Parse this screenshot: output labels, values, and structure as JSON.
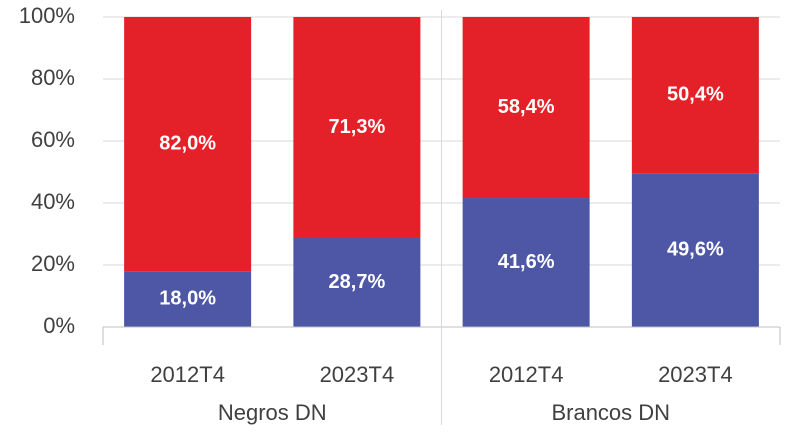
{
  "chart_data": {
    "type": "stacked_bar",
    "groups": [
      "Negros DN",
      "Brancos DN"
    ],
    "categories": [
      "2012T4",
      "2023T4",
      "2012T4",
      "2023T4"
    ],
    "series": [
      {
        "color": "#4e56a6",
        "values": [
          18.0,
          28.7,
          41.6,
          49.6
        ],
        "value_labels": [
          "18,0%",
          "28,7%",
          "41,6%",
          "49,6%"
        ]
      },
      {
        "color": "#e42128",
        "values": [
          82.0,
          71.3,
          58.4,
          50.4
        ],
        "value_labels": [
          "82,0%",
          "71,3%",
          "58,4%",
          "50,4%"
        ]
      }
    ],
    "ylim": [
      0,
      100
    ],
    "yticks": [
      {
        "value": 0,
        "label": "0%"
      },
      {
        "value": 20,
        "label": "20%"
      },
      {
        "value": 40,
        "label": "40%"
      },
      {
        "value": 60,
        "label": "60%"
      },
      {
        "value": 80,
        "label": "80%"
      },
      {
        "value": 100,
        "label": "100%"
      }
    ],
    "grid": true
  }
}
